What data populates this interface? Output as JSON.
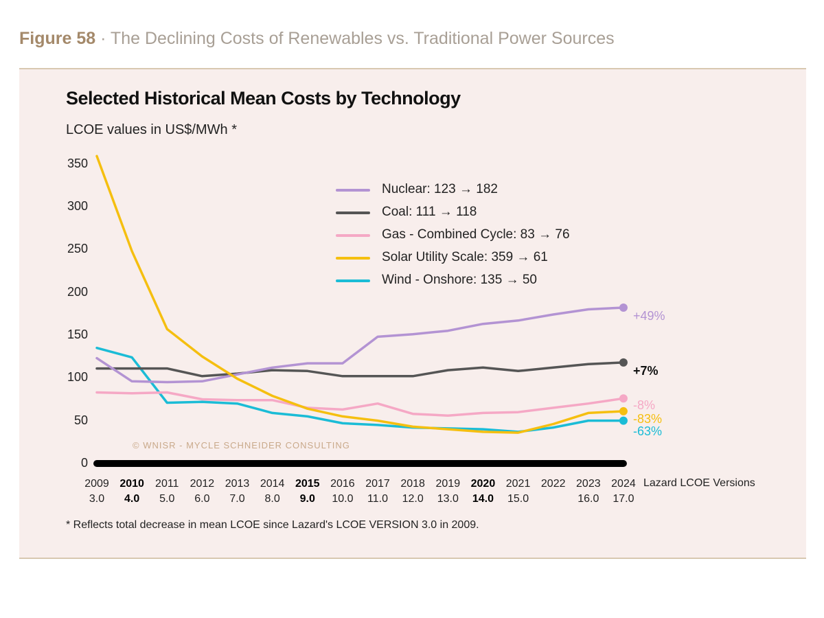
{
  "figure": {
    "number": "Figure 58",
    "separator": " · ",
    "caption": "The Declining Costs of Renewables vs. Traditional Power Sources"
  },
  "watermark": "© WNISR - MYCLE SCHNEIDER CONSULTING",
  "chart_data": {
    "type": "line",
    "title": "Selected Historical Mean Costs by Technology",
    "subtitle": "LCOE values in US$/MWh *",
    "xlabel": "Lazard LCOE Versions",
    "ylabel": "",
    "ylim": [
      0,
      350
    ],
    "yticks": [
      0,
      50,
      100,
      150,
      200,
      250,
      300,
      350
    ],
    "x": [
      "2009",
      "2010",
      "2011",
      "2012",
      "2013",
      "2014",
      "2015",
      "2016",
      "2017",
      "2018",
      "2019",
      "2020",
      "2021",
      "2022",
      "2023",
      "2024"
    ],
    "x_versions": [
      "3.0",
      "4.0",
      "5.0",
      "6.0",
      "7.0",
      "8.0",
      "9.0",
      "10.0",
      "11.0",
      "12.0",
      "13.0",
      "14.0",
      "15.0",
      "",
      "16.0",
      "17.0"
    ],
    "bold_years": [
      "2010",
      "2015",
      "2020"
    ],
    "series": [
      {
        "name": "Nuclear: 123 → 182",
        "color": "#b393d3",
        "end_label": "+49%",
        "values": [
          123,
          96,
          95,
          96,
          104,
          112,
          117,
          117,
          148,
          151,
          155,
          163,
          167,
          174,
          180,
          182
        ]
      },
      {
        "name": "Coal: 111 → 118",
        "color": "#555555",
        "end_label": "+7%",
        "values": [
          111,
          111,
          111,
          102,
          105,
          109,
          108,
          102,
          102,
          102,
          109,
          112,
          108,
          112,
          116,
          118
        ]
      },
      {
        "name": "Gas - Combined Cycle: 83 → 76",
        "color": "#f5a8c5",
        "end_label": "-8%",
        "values": [
          83,
          82,
          83,
          75,
          74,
          74,
          65,
          63,
          70,
          58,
          56,
          59,
          60,
          65,
          70,
          76
        ]
      },
      {
        "name": "Solar Utility Scale: 359 → 61",
        "color": "#f5bf10",
        "end_label": "-83%",
        "values": [
          359,
          248,
          157,
          125,
          99,
          79,
          64,
          55,
          50,
          43,
          40,
          37,
          36,
          46,
          59,
          61
        ]
      },
      {
        "name": "Wind - Onshore: 135 → 50",
        "color": "#1bbcd6",
        "end_label": "-63%",
        "values": [
          135,
          124,
          71,
          72,
          70,
          59,
          55,
          47,
          45,
          42,
          41,
          40,
          37,
          42,
          50,
          50
        ]
      }
    ],
    "end_label_colors": [
      "#b393d3",
      "#111111",
      "#f5a8c5",
      "#f5bf10",
      "#1bbcd6"
    ],
    "footnote": "* Reflects total decrease in mean LCOE since Lazard's LCOE VERSION 3.0 in 2009.",
    "legend": "top-center",
    "grid": false
  }
}
